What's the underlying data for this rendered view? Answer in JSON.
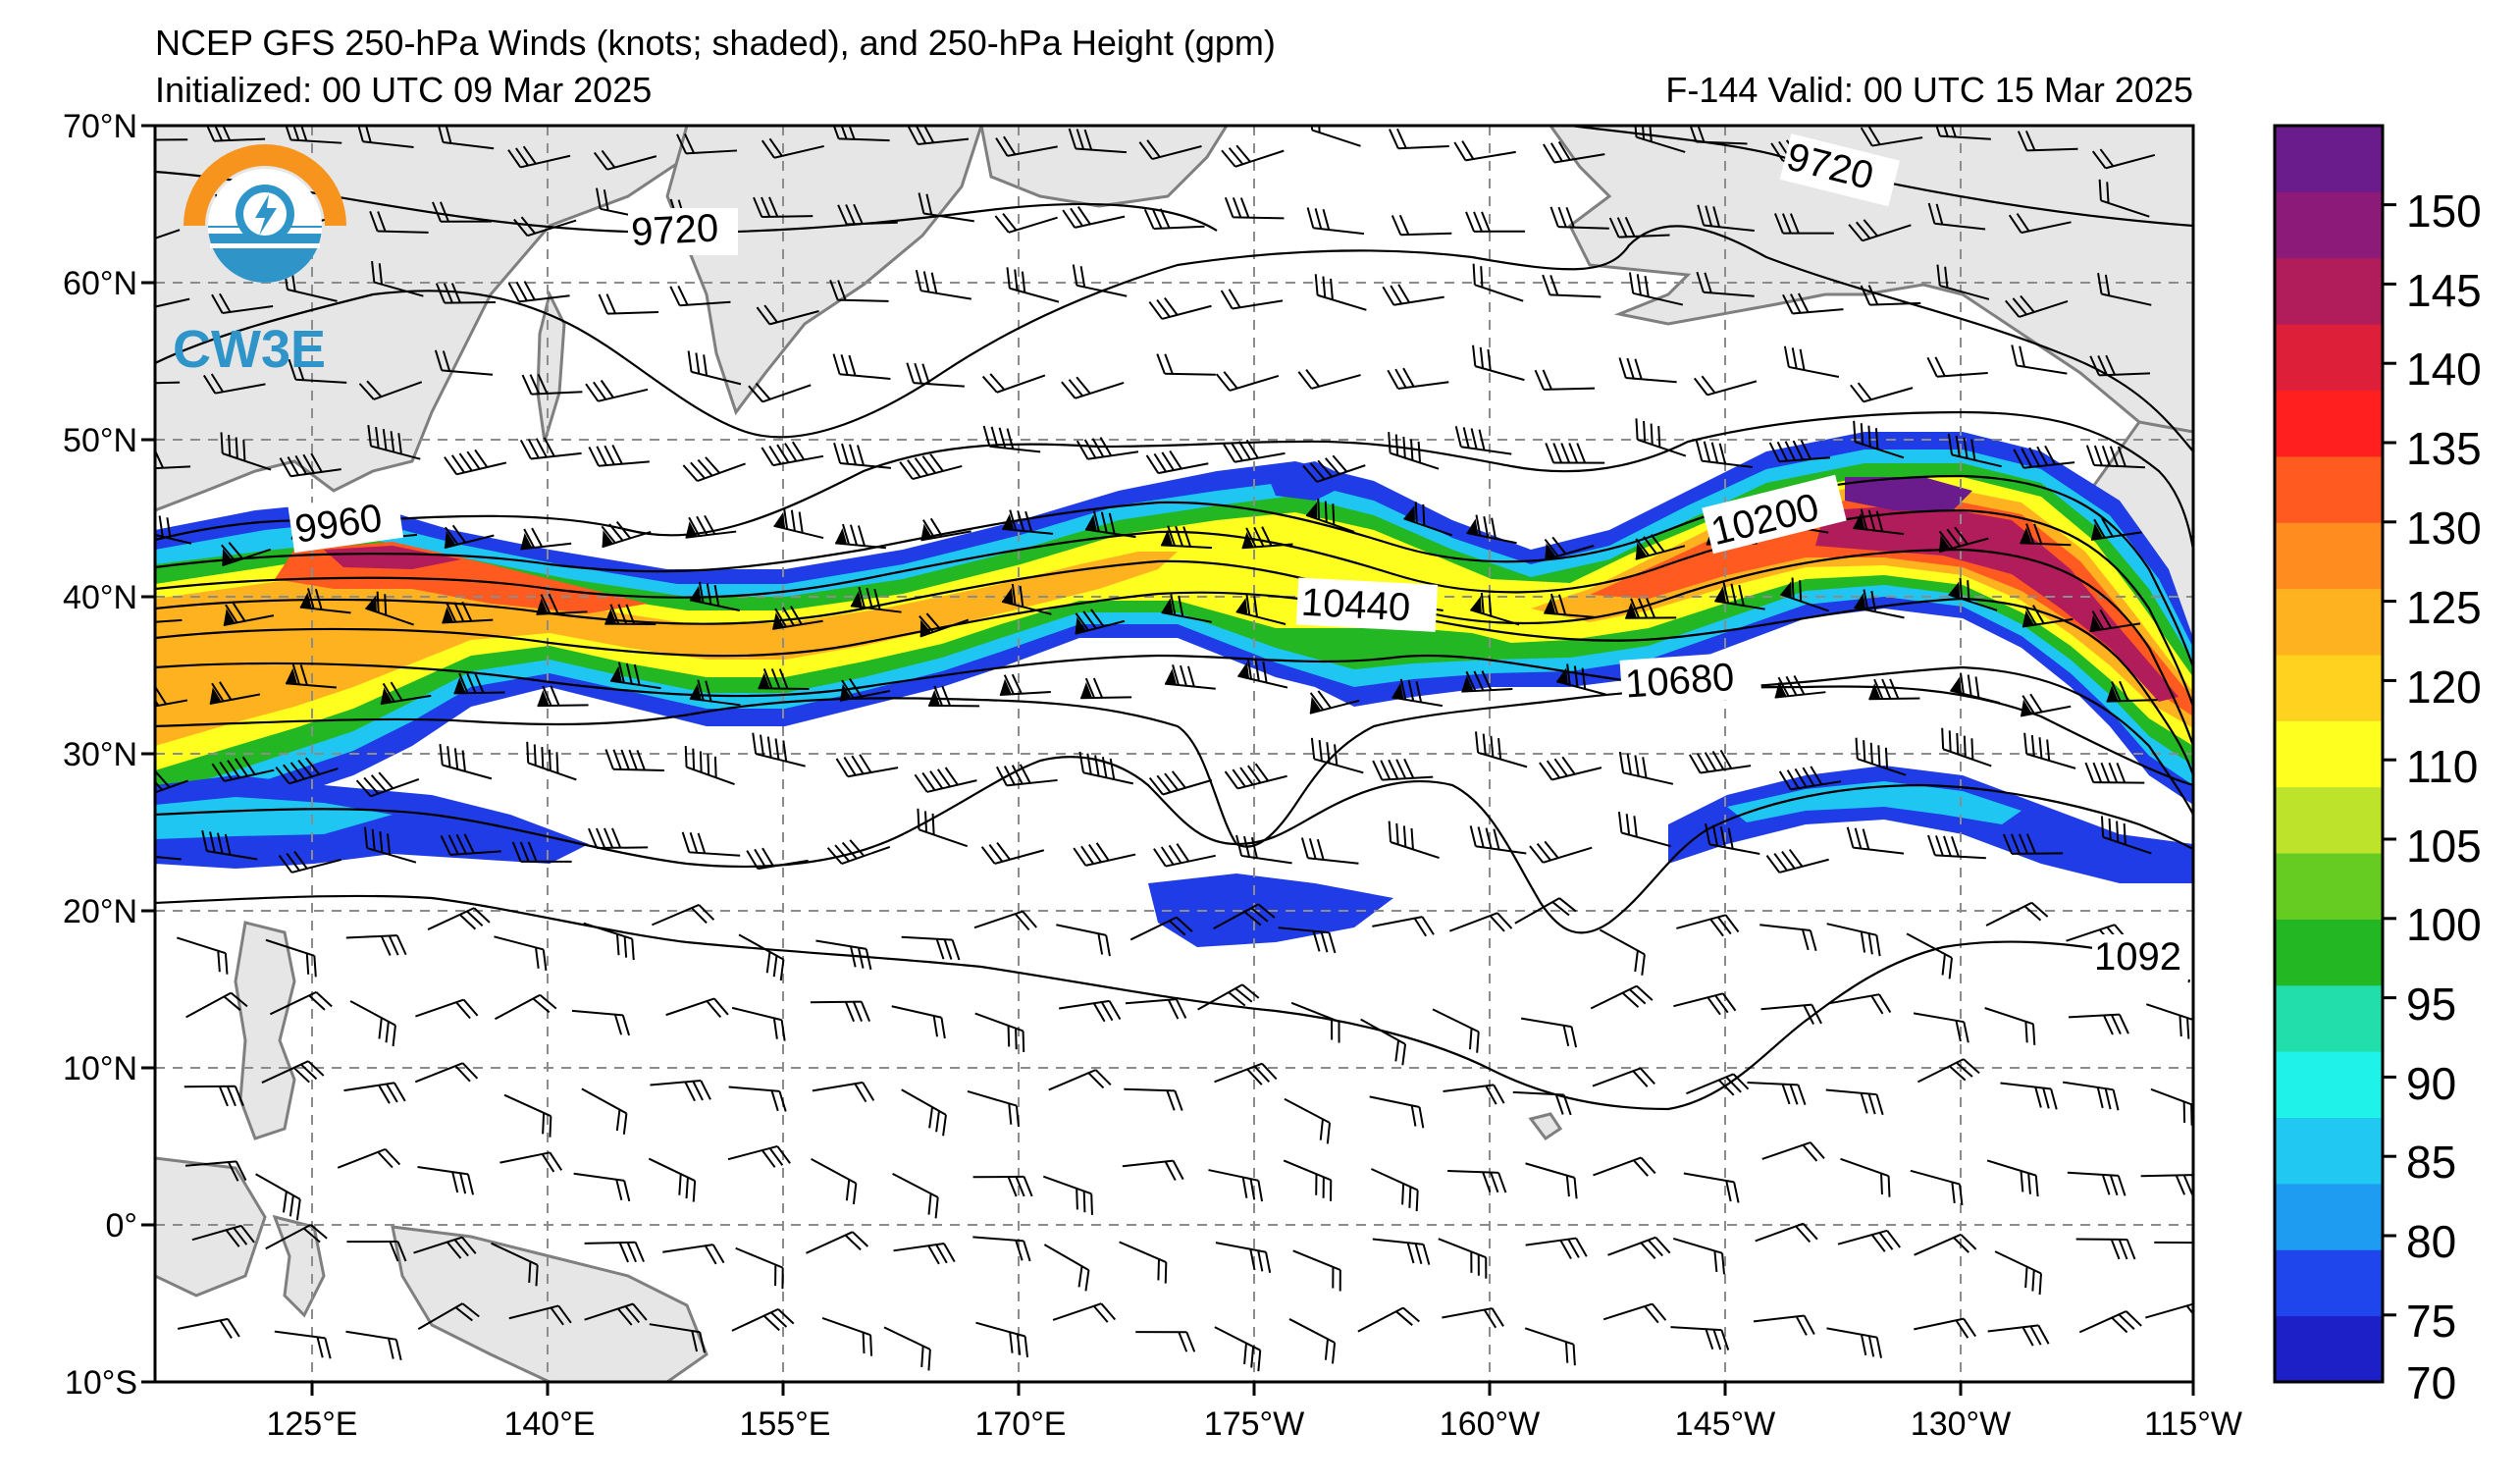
{
  "header": {
    "title_line": "NCEP GFS 250-hPa Winds (knots; shaded), and 250-hPa Height (gpm)",
    "initialized": "Initialized: 00 UTC 09 Mar 2025",
    "valid": "F-144  Valid: 00 UTC 15 Mar 2025"
  },
  "logo": {
    "text": "CW3E",
    "icon": "cw3e-logo-icon",
    "ring_color": "#f7941d",
    "accent_color": "#2f95c8"
  },
  "map": {
    "lat_labels": [
      "70°N",
      "60°N",
      "50°N",
      "40°N",
      "30°N",
      "20°N",
      "10°N",
      "0°",
      "10°S"
    ],
    "lon_labels": [
      "125°E",
      "140°E",
      "155°E",
      "170°E",
      "175°W",
      "160°W",
      "145°W",
      "130°W",
      "115°W"
    ],
    "contour_labels": [
      "9720",
      "9720",
      "9960",
      "10200",
      "10440",
      "10680",
      "1092"
    ],
    "land_color": "#e6e6e6",
    "coast_color": "#7f7f7f"
  },
  "colorbar": {
    "ticks": [
      "150",
      "145",
      "140",
      "135",
      "130",
      "125",
      "120",
      "110",
      "105",
      "100",
      "95",
      "90",
      "85",
      "80",
      "75",
      "70"
    ],
    "colors_bottom_to_top": [
      "#1d1fc7",
      "#1f46ec",
      "#1d9cf1",
      "#21c8f2",
      "#1ff2e9",
      "#21deaa",
      "#23b723",
      "#67cc22",
      "#bde32a",
      "#ffff1f",
      "#ffd21f",
      "#ffb21f",
      "#ff8c1f",
      "#ff5a1f",
      "#ff1f1f",
      "#dd1f3a",
      "#b11c5a",
      "#8c1a78",
      "#6a1c8c"
    ]
  },
  "jet_colors": {
    "c70": "#1f3ce6",
    "c85": "#1fc6f2",
    "c95": "#23b723",
    "c105": "#ffff1f",
    "c120": "#ffb21f",
    "c130": "#ff5a1f",
    "c140": "#b11c5a",
    "c150": "#6a1c8c"
  }
}
